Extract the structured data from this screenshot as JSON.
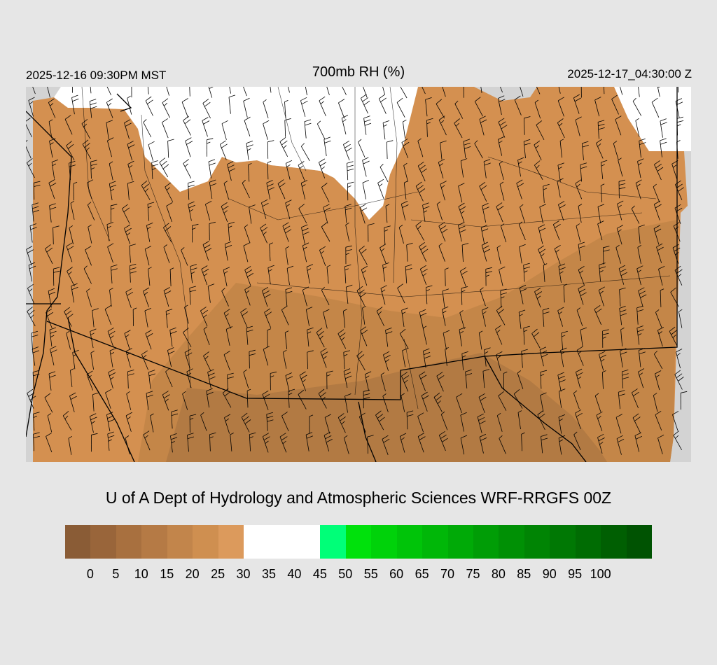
{
  "header": {
    "local_time": "2025-12-16 09:30PM MST",
    "title": "700mb RH (%)",
    "valid_time": "2025-12-17_04:30:00 Z"
  },
  "credit": "U of A Dept of Hydrology and Atmospheric Sciences WRF-RRGFS 00Z",
  "colors": {
    "background": "#e6e6e6",
    "no_data": "#d3d3d3",
    "moist": "#ffffff",
    "dry_main": "#d49050",
    "dry_mid": "#bf8348",
    "dry_dark": "#a6723f",
    "boundary": "#000000"
  },
  "colorbar": {
    "colors": [
      "#8a5c36",
      "#99653a",
      "#a8703f",
      "#b57a45",
      "#c2854b",
      "#cf8f50",
      "#dc9a5c",
      "#ffffff",
      "#ffffff",
      "#ffffff",
      "#00ff78",
      "#00e10c",
      "#00d20a",
      "#00c409",
      "#00b708",
      "#00aa07",
      "#009d06",
      "#009005",
      "#008404",
      "#007804",
      "#006c03",
      "#005f02",
      "#005302"
    ],
    "ticks": [
      "0",
      "5",
      "10",
      "15",
      "20",
      "25",
      "30",
      "35",
      "40",
      "45",
      "50",
      "55",
      "60",
      "65",
      "70",
      "75",
      "80",
      "85",
      "90",
      "95",
      "100"
    ]
  }
}
